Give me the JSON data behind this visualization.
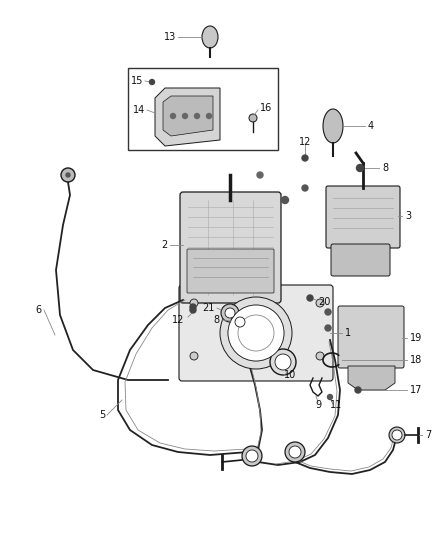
{
  "bg_color": "#ffffff",
  "line_color": "#1a1a1a",
  "fig_width": 4.38,
  "fig_height": 5.33,
  "dpi": 100,
  "label_fs": 7.0,
  "leader_color": "#888888",
  "part_gray": "#d0d0d0",
  "part_dark": "#555555",
  "part_mid": "#aaaaaa"
}
